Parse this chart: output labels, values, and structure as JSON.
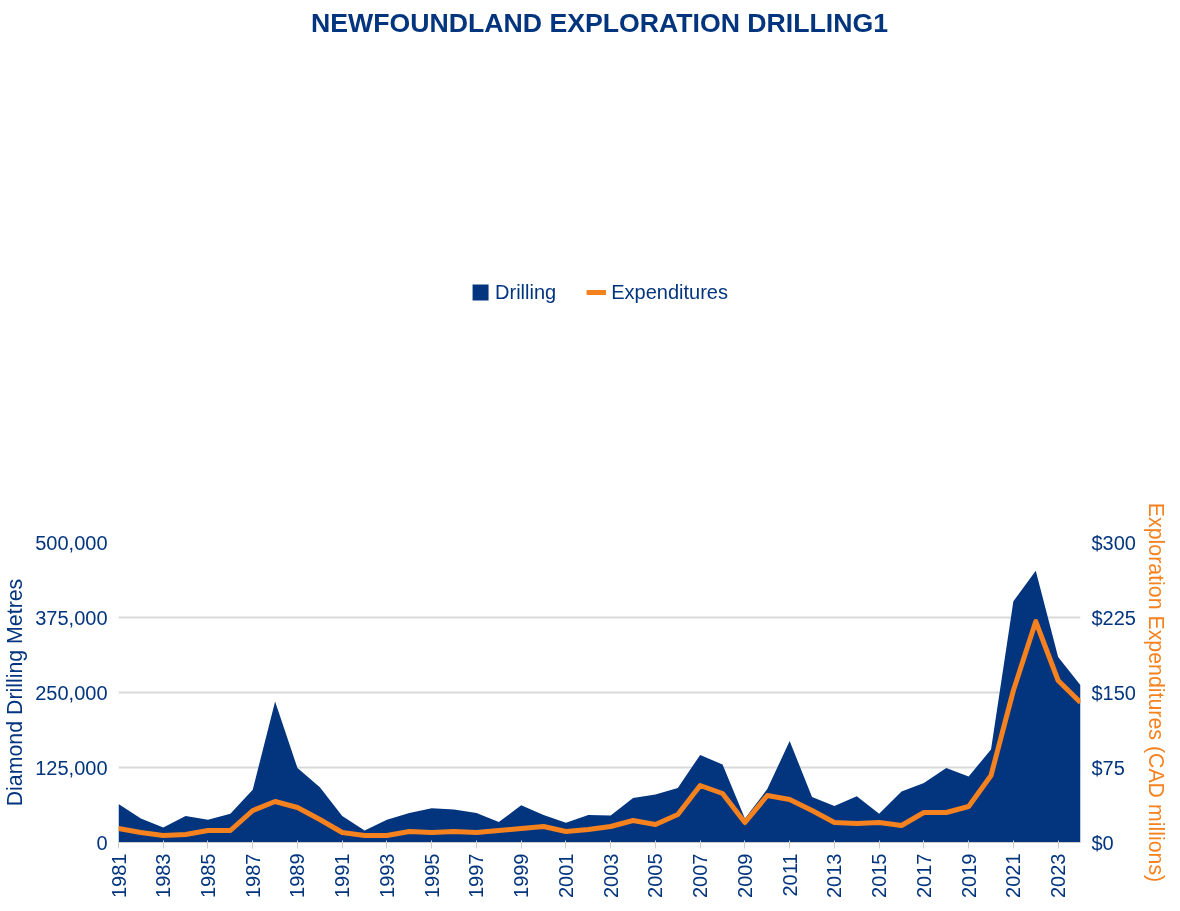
{
  "chart_data": {
    "type": "area",
    "title": "NEWFOUNDLAND EXPLORATION DRILLING1",
    "ylabel": "Diamond Drilling Metres",
    "y2label": "Exploration Expenditures (CAD millions)",
    "x": [
      1981,
      1982,
      1983,
      1984,
      1985,
      1986,
      1987,
      1988,
      1989,
      1990,
      1991,
      1992,
      1993,
      1994,
      1995,
      1996,
      1997,
      1998,
      1999,
      2000,
      2001,
      2002,
      2003,
      2004,
      2005,
      2006,
      2007,
      2008,
      2009,
      2010,
      2011,
      2012,
      2013,
      2014,
      2015,
      2016,
      2017,
      2018,
      2019,
      2020,
      2021,
      2022,
      2023,
      2024
    ],
    "series": [
      {
        "name": "Drilling",
        "color": "#03357f",
        "values": [
          64000,
          40000,
          25000,
          44000,
          38000,
          48000,
          88000,
          235000,
          124000,
          92000,
          44000,
          20000,
          38000,
          49000,
          57000,
          55000,
          49000,
          34000,
          62000,
          46000,
          33000,
          46000,
          45000,
          74000,
          80000,
          91000,
          146000,
          130000,
          40000,
          89000,
          169000,
          76000,
          61000,
          77000,
          48000,
          85000,
          99000,
          124000,
          110000,
          155000,
          402000,
          453000,
          309000,
          262000
        ]
      },
      {
        "name": "Expenditures",
        "type": "line",
        "axis": "y2",
        "color": "#f5821f",
        "values": [
          14,
          10,
          7,
          8,
          12,
          12,
          32,
          41,
          35,
          23,
          10,
          7,
          7,
          11,
          10,
          11,
          10,
          12,
          14,
          16,
          11,
          13,
          16,
          22,
          18,
          28,
          57,
          49,
          20,
          47,
          43,
          32,
          20,
          19,
          20,
          17,
          30,
          30,
          36,
          67,
          152,
          221,
          162,
          140
        ]
      }
    ],
    "xlim": [
      1981,
      2024
    ],
    "xticks": [
      1981,
      1983,
      1985,
      1987,
      1989,
      1991,
      1993,
      1995,
      1997,
      1999,
      2001,
      2003,
      2005,
      2007,
      2009,
      2011,
      2013,
      2015,
      2017,
      2019,
      2021,
      2023
    ],
    "ylim": [
      0,
      500000
    ],
    "yticks": [
      0,
      {
        "value": 125000,
        "label": "125,000"
      },
      {
        "value": 250000,
        "label": "250,000"
      },
      {
        "value": 375000,
        "label": "375,000"
      },
      {
        "value": 500000,
        "label": "500,000"
      }
    ],
    "y2lim": [
      0,
      300
    ],
    "y2ticks": [
      {
        "value": 0,
        "label": "$0"
      },
      {
        "value": 75,
        "label": "$75"
      },
      {
        "value": 150,
        "label": "$150"
      },
      {
        "value": 225,
        "label": "$225"
      },
      {
        "value": 300,
        "label": "$300"
      }
    ],
    "grid": "y",
    "legend": "top",
    "line_style": "solid",
    "marker": "none"
  }
}
